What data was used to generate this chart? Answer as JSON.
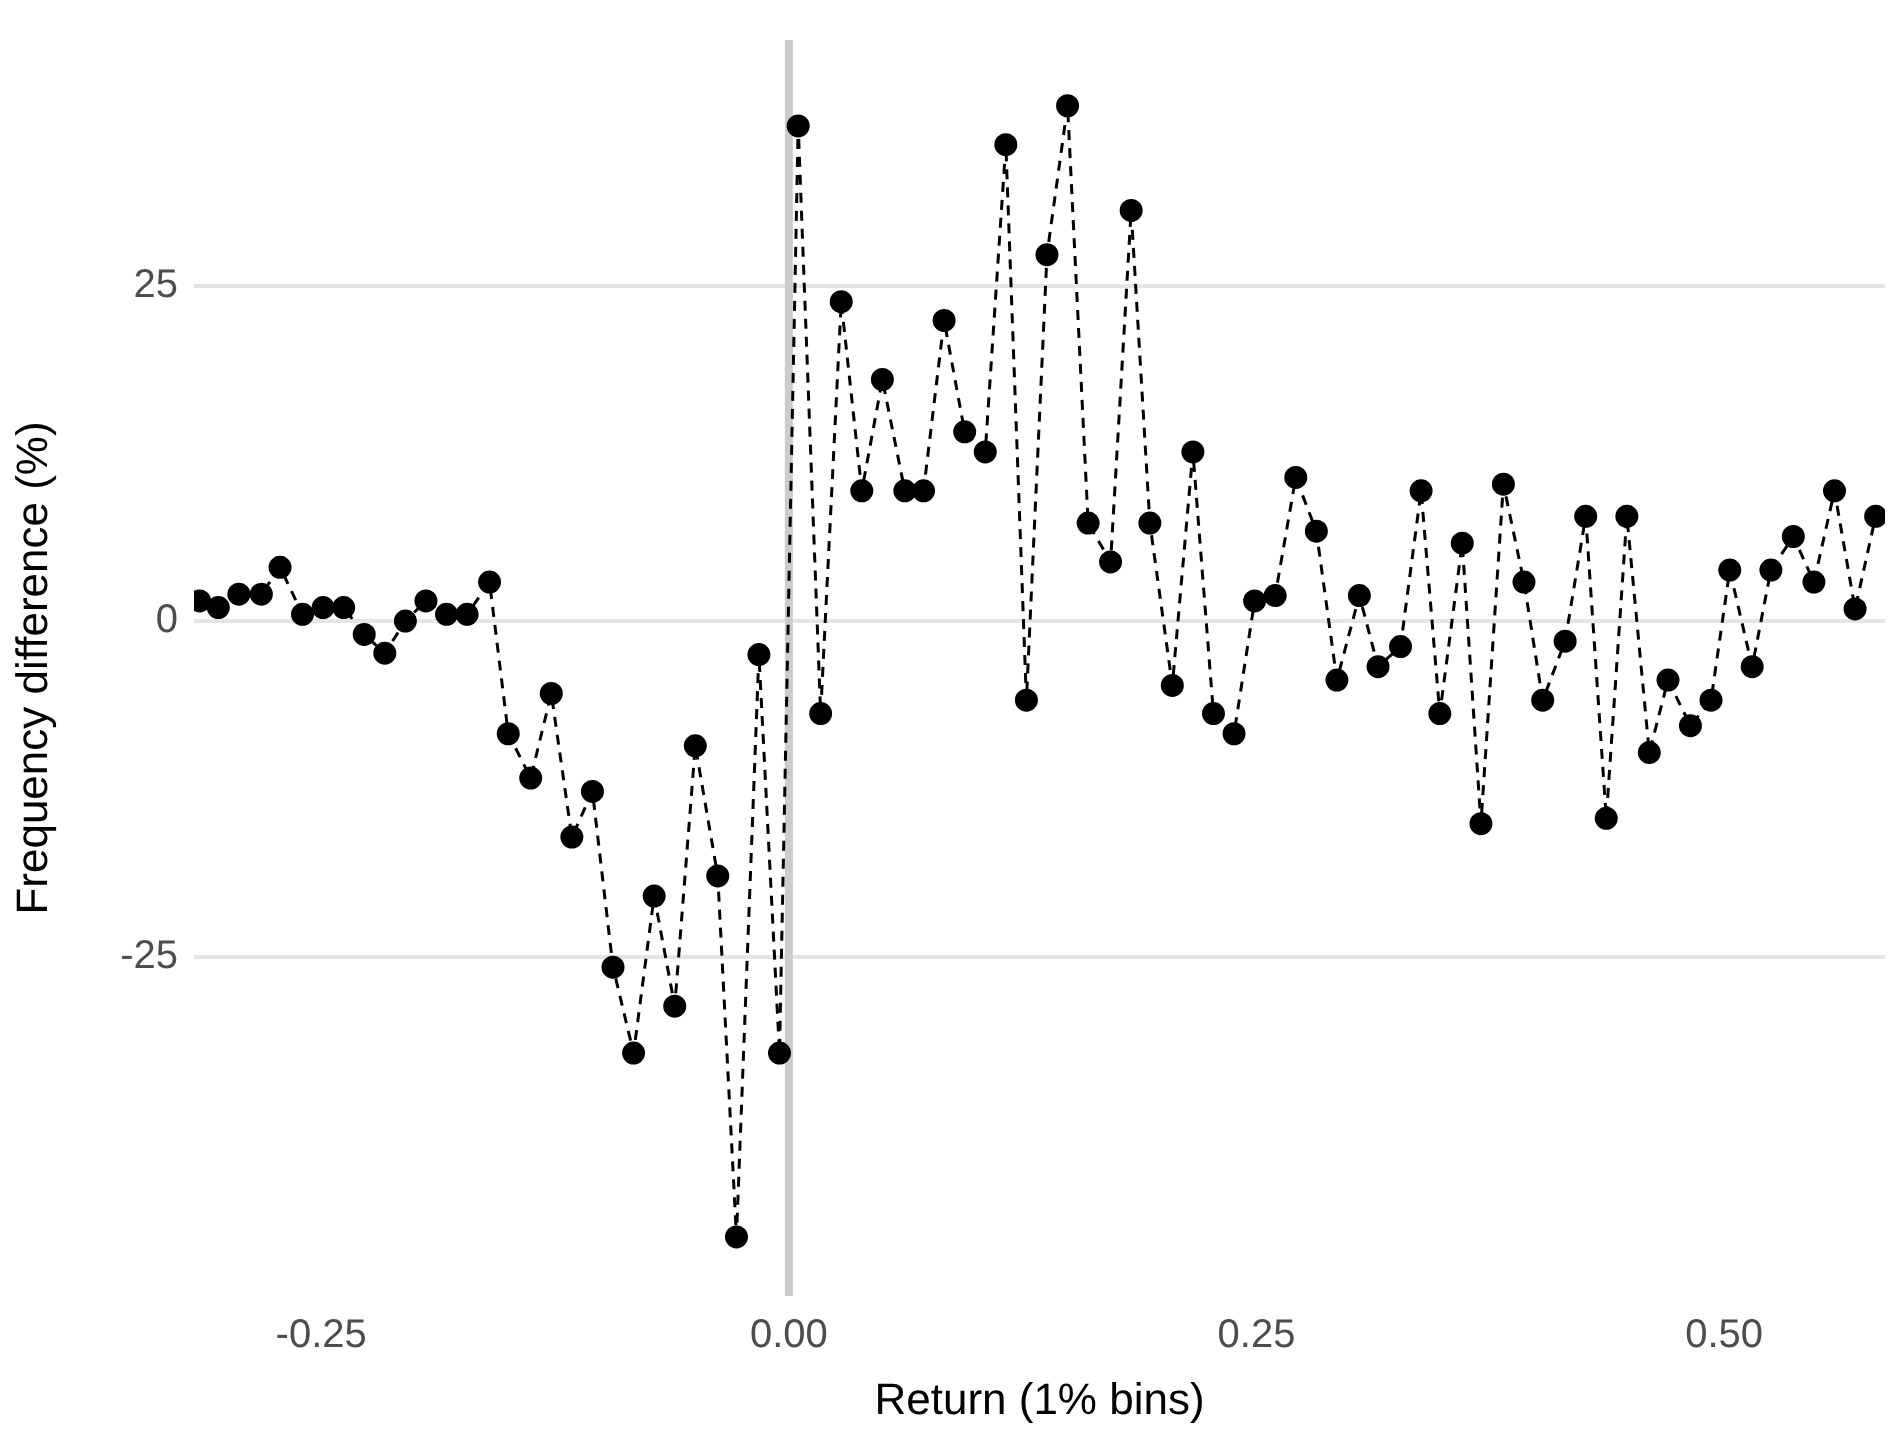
{
  "chart_data": {
    "type": "line",
    "xlabel": "Return (1% bins)",
    "ylabel": "Frequency difference (%)",
    "x": [
      -0.315,
      -0.305,
      -0.294,
      -0.282,
      -0.272,
      -0.26,
      -0.249,
      -0.238,
      -0.227,
      -0.216,
      -0.205,
      -0.194,
      -0.183,
      -0.172,
      -0.16,
      -0.15,
      -0.138,
      -0.127,
      -0.116,
      -0.105,
      -0.094,
      -0.083,
      -0.072,
      -0.061,
      -0.05,
      -0.038,
      -0.028,
      -0.016,
      -0.005,
      0.005,
      0.017,
      0.028,
      0.039,
      0.05,
      0.062,
      0.072,
      0.083,
      0.094,
      0.105,
      0.116,
      0.127,
      0.138,
      0.149,
      0.16,
      0.172,
      0.183,
      0.193,
      0.205,
      0.216,
      0.227,
      0.238,
      0.249,
      0.26,
      0.271,
      0.282,
      0.293,
      0.305,
      0.315,
      0.327,
      0.338,
      0.348,
      0.36,
      0.37,
      0.382,
      0.393,
      0.403,
      0.415,
      0.426,
      0.437,
      0.448,
      0.46,
      0.47,
      0.482,
      0.493,
      0.503,
      0.515,
      0.525,
      0.537,
      0.548,
      0.559,
      0.57,
      0.581
    ],
    "series": [
      {
        "color": "#000000",
        "values": [
          1.5,
          1.0,
          2.0,
          2.0,
          4.0,
          0.5,
          1.0,
          1.0,
          -1.0,
          -2.4,
          0,
          1.5,
          0.5,
          0.5,
          2.9,
          -8.4,
          -11.7,
          -5.4,
          -16.1,
          -12.7,
          -25.8,
          -32.2,
          -20.5,
          -28.7,
          -9.3,
          -19.0,
          -45.9,
          -2.5,
          -32.2,
          36.9,
          -6.9,
          23.8,
          9.7,
          18.0,
          9.7,
          9.7,
          22.4,
          14.1,
          12.6,
          35.5,
          -5.9,
          27.3,
          38.4,
          7.3,
          4.4,
          30.6,
          7.3,
          -4.8,
          12.6,
          -6.9,
          -8.4,
          1.5,
          1.9,
          10.7,
          6.7,
          -4.4,
          1.9,
          -3.4,
          -1.9,
          9.7,
          -6.9,
          5.8,
          -15.1,
          10.2,
          2.9,
          -5.9,
          -1.5,
          7.8,
          -14.7,
          7.8,
          -9.8,
          -4.4,
          -7.8,
          -5.9,
          3.8,
          -3.4,
          3.8,
          6.3,
          2.9,
          9.7,
          0.9,
          7.8
        ]
      }
    ],
    "xlim": [
      -0.318,
      0.586
    ],
    "ylim": [
      -50.3,
      43.3
    ],
    "xticks": [
      -0.25,
      {
        "value": 0,
        "label": "0.00"
      },
      0.25,
      {
        "value": 0.5,
        "label": "0.50"
      }
    ],
    "yticks": [
      -25,
      0,
      25
    ],
    "ref_lines": [
      {
        "axis": "x",
        "value": 0,
        "color": "#cccccc"
      }
    ],
    "grid": "y",
    "legend": false,
    "marker": "circle",
    "line_style": "dashed"
  }
}
